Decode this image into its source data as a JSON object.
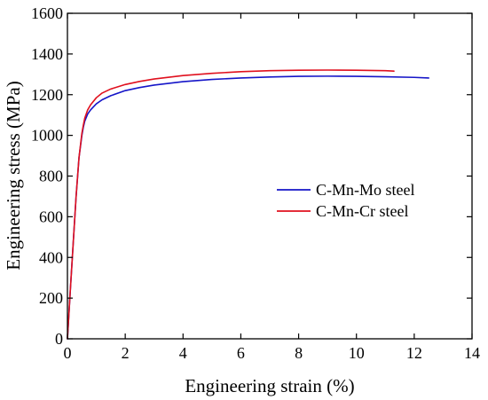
{
  "chart_data": {
    "type": "line",
    "title": "",
    "xlabel": "Engineering strain (%)",
    "ylabel": "Engineering stress (MPa)",
    "xlim": [
      0,
      14
    ],
    "ylim": [
      0,
      1600
    ],
    "xticks": [
      0,
      2,
      4,
      6,
      8,
      10,
      12,
      14
    ],
    "yticks": [
      0,
      200,
      400,
      600,
      800,
      1000,
      1200,
      1400,
      1600
    ],
    "grid": false,
    "legend_position": "right-center",
    "series": [
      {
        "name": "C-Mn-Mo steel",
        "color": "#1515c8",
        "x": [
          0,
          0.1,
          0.2,
          0.3,
          0.4,
          0.5,
          0.55,
          0.6,
          0.7,
          0.8,
          1.0,
          1.2,
          1.5,
          2.0,
          2.5,
          3.0,
          4.0,
          5.0,
          6.0,
          7.0,
          8.0,
          9.0,
          10.0,
          11.0,
          12.0,
          12.5
        ],
        "y": [
          0,
          240,
          470,
          700,
          890,
          1000,
          1040,
          1070,
          1105,
          1125,
          1155,
          1175,
          1195,
          1220,
          1235,
          1247,
          1264,
          1275,
          1282,
          1287,
          1290,
          1291,
          1290,
          1288,
          1285,
          1282
        ]
      },
      {
        "name": "C-Mn-Cr steel",
        "color": "#e0101e",
        "x": [
          0,
          0.1,
          0.2,
          0.3,
          0.4,
          0.5,
          0.55,
          0.6,
          0.7,
          0.8,
          1.0,
          1.2,
          1.5,
          2.0,
          2.5,
          3.0,
          4.0,
          5.0,
          6.0,
          7.0,
          8.0,
          9.0,
          10.0,
          11.0,
          11.3
        ],
        "y": [
          0,
          240,
          470,
          700,
          890,
          1010,
          1050,
          1085,
          1125,
          1150,
          1185,
          1208,
          1228,
          1250,
          1265,
          1277,
          1294,
          1305,
          1313,
          1318,
          1320,
          1321,
          1320,
          1318,
          1316
        ]
      }
    ]
  }
}
